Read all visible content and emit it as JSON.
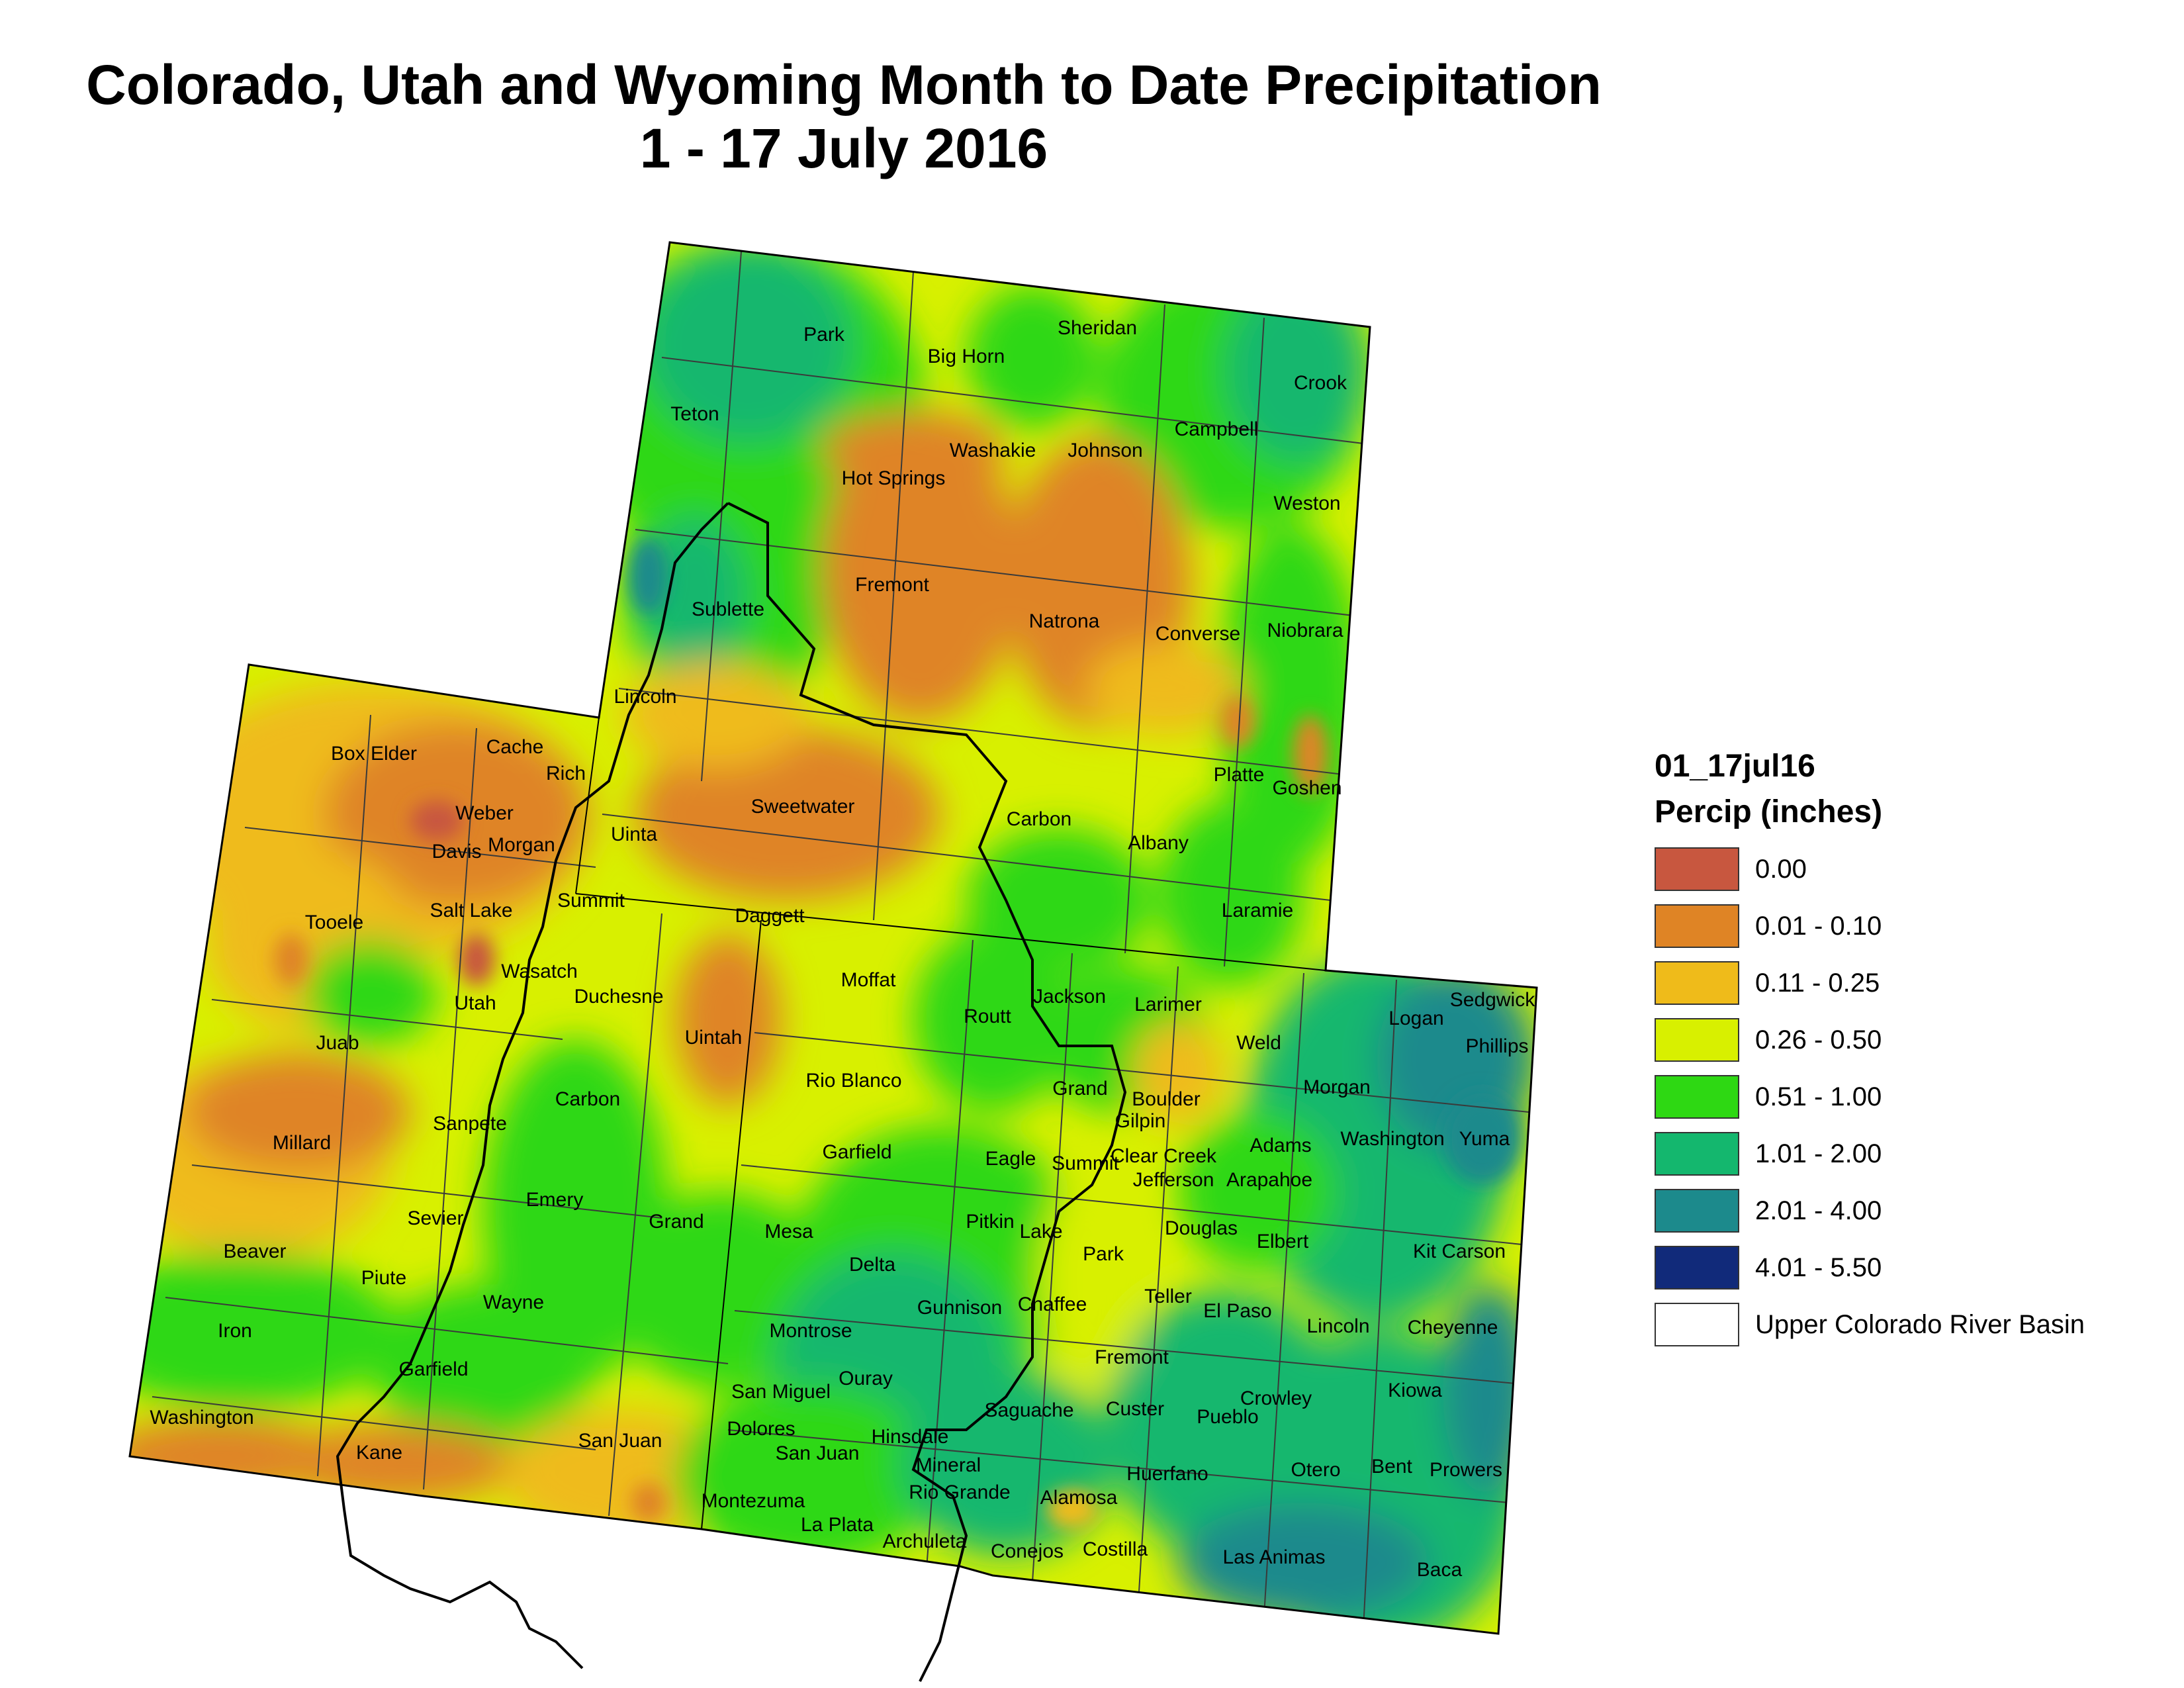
{
  "title": {
    "line1": "Colorado, Utah and Wyoming Month to Date Precipitation",
    "line2": "1 - 17 July 2016"
  },
  "legend": {
    "dataset": "01_17jul16",
    "unit": "Percip (inches)",
    "classes": [
      {
        "label": "0.00",
        "color": "#c8573f"
      },
      {
        "label": "0.01 - 0.10",
        "color": "#df8425"
      },
      {
        "label": "0.11 - 0.25",
        "color": "#efbb1a"
      },
      {
        "label": "0.26 - 0.50",
        "color": "#d8f000"
      },
      {
        "label": "0.51 - 1.00",
        "color": "#2ed813"
      },
      {
        "label": "1.01 - 2.00",
        "color": "#14b76e"
      },
      {
        "label": "2.01 - 4.00",
        "color": "#1c8a8c"
      },
      {
        "label": "4.01 - 5.50",
        "color": "#112a7a"
      }
    ],
    "basin": {
      "label": "Upper Colorado River Basin",
      "color": "#ffffff"
    }
  },
  "counties": {
    "wyoming": [
      "Park",
      "Big Horn",
      "Sheridan",
      "Crook",
      "Teton",
      "Washakie",
      "Johnson",
      "Campbell",
      "Hot Springs",
      "Weston",
      "Fremont",
      "Natrona",
      "Converse",
      "Niobrara",
      "Sublette",
      "Lincoln",
      "Sweetwater",
      "Carbon",
      "Albany",
      "Platte",
      "Goshen",
      "Uinta",
      "Laramie"
    ],
    "utah": [
      "Box Elder",
      "Cache",
      "Rich",
      "Weber",
      "Davis",
      "Morgan",
      "Tooele",
      "Salt Lake",
      "Summit",
      "Daggett",
      "Wasatch",
      "Utah",
      "Duchesne",
      "Uintah",
      "Juab",
      "Carbon",
      "Sanpete",
      "Millard",
      "Emery",
      "Sevier",
      "Grand",
      "Beaver",
      "Piute",
      "Wayne",
      "Iron",
      "Garfield",
      "Washington",
      "Kane",
      "San Juan"
    ],
    "colorado": [
      "Moffat",
      "Jackson",
      "Larimer",
      "Sedgwick",
      "Logan",
      "Routt",
      "Phillips",
      "Weld",
      "Rio Blanco",
      "Grand",
      "Boulder",
      "Morgan",
      "Gilpin",
      "Washington",
      "Yuma",
      "Garfield",
      "Eagle",
      "Summit",
      "Clear Creek",
      "Adams",
      "Jefferson",
      "Arapahoe",
      "Mesa",
      "Pitkin",
      "Lake",
      "Douglas",
      "Elbert",
      "Park",
      "Kit Carson",
      "Delta",
      "Teller",
      "Gunnison",
      "Chaffee",
      "El Paso",
      "Lincoln",
      "Cheyenne",
      "Montrose",
      "Fremont",
      "Ouray",
      "San Miguel",
      "Saguache",
      "Custer",
      "Crowley",
      "Kiowa",
      "Pueblo",
      "Dolores",
      "Hinsdale",
      "San Juan",
      "Mineral",
      "Otero",
      "Bent",
      "Prowers",
      "Huerfano",
      "Rio Grande",
      "Alamosa",
      "Montezuma",
      "La Plata",
      "Archuleta",
      "Conejos",
      "Costilla",
      "Las Animas",
      "Baca"
    ]
  }
}
